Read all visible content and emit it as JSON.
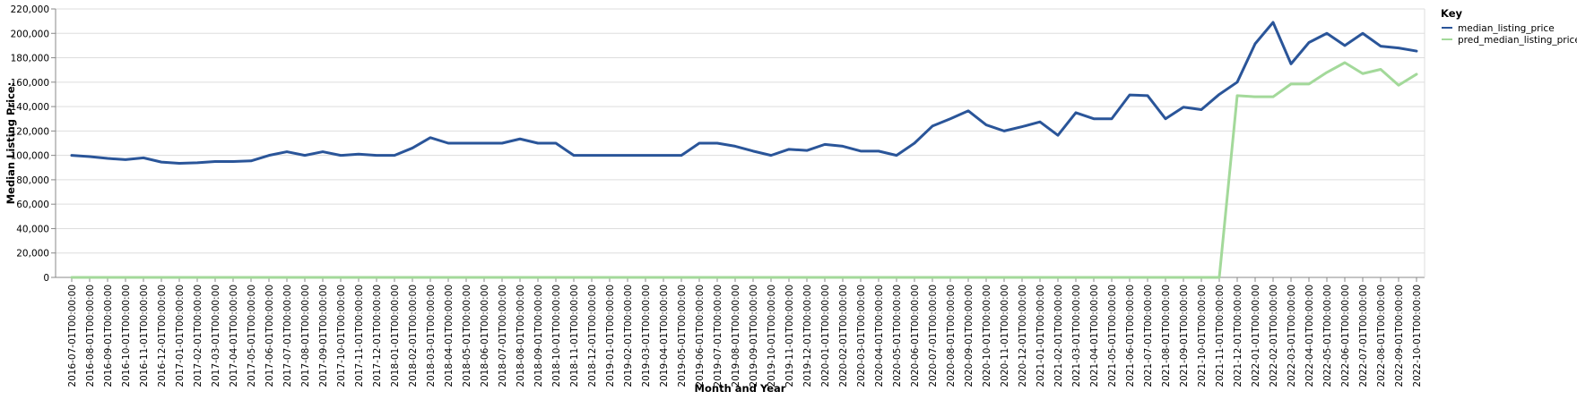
{
  "chart_data": {
    "type": "line",
    "xlabel": "Month and Year",
    "ylabel": "Median Listing Price:",
    "ylim": [
      0,
      220000
    ],
    "y_ticks": [
      "0",
      "20,000",
      "40,000",
      "60,000",
      "80,000",
      "100,000",
      "120,000",
      "140,000",
      "160,000",
      "180,000",
      "200,000",
      "220,000"
    ],
    "grid": true,
    "legend": {
      "title": "Key",
      "placement": "top-right"
    },
    "x": [
      "2016-07-01T00:00:00",
      "2016-08-01T00:00:00",
      "2016-09-01T00:00:00",
      "2016-10-01T00:00:00",
      "2016-11-01T00:00:00",
      "2016-12-01T00:00:00",
      "2017-01-01T00:00:00",
      "2017-02-01T00:00:00",
      "2017-03-01T00:00:00",
      "2017-04-01T00:00:00",
      "2017-05-01T00:00:00",
      "2017-06-01T00:00:00",
      "2017-07-01T00:00:00",
      "2017-08-01T00:00:00",
      "2017-09-01T00:00:00",
      "2017-10-01T00:00:00",
      "2017-11-01T00:00:00",
      "2017-12-01T00:00:00",
      "2018-01-01T00:00:00",
      "2018-02-01T00:00:00",
      "2018-03-01T00:00:00",
      "2018-04-01T00:00:00",
      "2018-05-01T00:00:00",
      "2018-06-01T00:00:00",
      "2018-07-01T00:00:00",
      "2018-08-01T00:00:00",
      "2018-09-01T00:00:00",
      "2018-10-01T00:00:00",
      "2018-11-01T00:00:00",
      "2018-12-01T00:00:00",
      "2019-01-01T00:00:00",
      "2019-02-01T00:00:00",
      "2019-03-01T00:00:00",
      "2019-04-01T00:00:00",
      "2019-05-01T00:00:00",
      "2019-06-01T00:00:00",
      "2019-07-01T00:00:00",
      "2019-08-01T00:00:00",
      "2019-09-01T00:00:00",
      "2019-10-01T00:00:00",
      "2019-11-01T00:00:00",
      "2019-12-01T00:00:00",
      "2020-01-01T00:00:00",
      "2020-02-01T00:00:00",
      "2020-03-01T00:00:00",
      "2020-04-01T00:00:00",
      "2020-05-01T00:00:00",
      "2020-06-01T00:00:00",
      "2020-07-01T00:00:00",
      "2020-08-01T00:00:00",
      "2020-09-01T00:00:00",
      "2020-10-01T00:00:00",
      "2020-11-01T00:00:00",
      "2020-12-01T00:00:00",
      "2021-01-01T00:00:00",
      "2021-02-01T00:00:00",
      "2021-03-01T00:00:00",
      "2021-04-01T00:00:00",
      "2021-05-01T00:00:00",
      "2021-06-01T00:00:00",
      "2021-07-01T00:00:00",
      "2021-08-01T00:00:00",
      "2021-09-01T00:00:00",
      "2021-10-01T00:00:00",
      "2021-11-01T00:00:00",
      "2021-12-01T00:00:00",
      "2022-01-01T00:00:00",
      "2022-02-01T00:00:00",
      "2022-03-01T00:00:00",
      "2022-04-01T00:00:00",
      "2022-05-01T00:00:00",
      "2022-06-01T00:00:00",
      "2022-07-01T00:00:00",
      "2022-08-01T00:00:00",
      "2022-09-01T00:00:00",
      "2022-10-01T00:00:00"
    ],
    "series": [
      {
        "name": "median_listing_price",
        "color": "#2a5599",
        "values": [
          100000,
          99000,
          97500,
          96500,
          98000,
          94500,
          93500,
          94000,
          95000,
          95000,
          95500,
          100000,
          103000,
          100000,
          103000,
          100000,
          101000,
          100000,
          100000,
          106000,
          114500,
          110000,
          110000,
          110000,
          110000,
          113500,
          110000,
          110000,
          100000,
          100000,
          100000,
          100000,
          100000,
          100000,
          100000,
          110000,
          110000,
          107500,
          103500,
          100000,
          105000,
          104000,
          109000,
          107500,
          103500,
          103500,
          100000,
          110000,
          124000,
          130000,
          136500,
          125000,
          120000,
          123500,
          127500,
          116500,
          135000,
          130000,
          130000,
          149500,
          149000,
          130000,
          139500,
          137500,
          150000,
          160000,
          191500,
          209000,
          175000,
          192500,
          200000,
          190000,
          200000,
          189500,
          188000,
          185500
        ]
      },
      {
        "name": "pred_median_listing_price",
        "color": "#a3d99a",
        "values": [
          0,
          0,
          0,
          0,
          0,
          0,
          0,
          0,
          0,
          0,
          0,
          0,
          0,
          0,
          0,
          0,
          0,
          0,
          0,
          0,
          0,
          0,
          0,
          0,
          0,
          0,
          0,
          0,
          0,
          0,
          0,
          0,
          0,
          0,
          0,
          0,
          0,
          0,
          0,
          0,
          0,
          0,
          0,
          0,
          0,
          0,
          0,
          0,
          0,
          0,
          0,
          0,
          0,
          0,
          0,
          0,
          0,
          0,
          0,
          0,
          0,
          0,
          0,
          0,
          0,
          149000,
          148000,
          148000,
          158500,
          158500,
          168000,
          176000,
          167000,
          170500,
          157500,
          166500
        ]
      }
    ]
  }
}
